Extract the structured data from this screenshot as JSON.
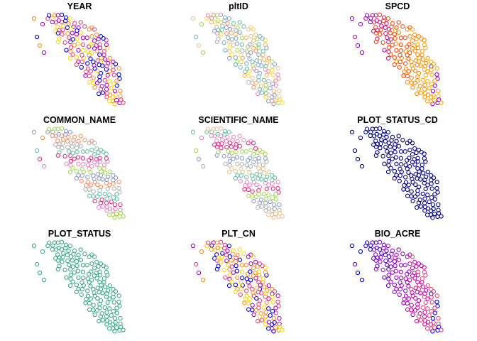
{
  "chart_data": [
    {
      "type": "scatter",
      "title": "YEAR",
      "palette": [
        "#0000ee",
        "#b000c8",
        "#e8417a",
        "#ff8c1a",
        "#ffd600"
      ],
      "grid": false,
      "axes": false
    },
    {
      "type": "scatter",
      "title": "pltID",
      "palette": [
        "#66c2a5",
        "#fc8d62",
        "#8da0cb",
        "#e78ac3",
        "#a6d854",
        "#ffd92f",
        "#e5c494",
        "#b3b3b3",
        "#80b1d3",
        "#fdb462"
      ],
      "grid": false,
      "axes": false
    },
    {
      "type": "scatter",
      "title": "SPCD",
      "palette": [
        "#9400d3",
        "#c71585",
        "#ff4500",
        "#ff8c00",
        "#ffa500"
      ],
      "grid": false,
      "axes": false
    },
    {
      "type": "scatter",
      "title": "COMMON_NAME",
      "palette": [
        "#66c2a5",
        "#e7298a",
        "#e78ac3",
        "#a6d854",
        "#8da0cb",
        "#fc8d62",
        "#b3b3b3"
      ],
      "grid": false,
      "axes": false
    },
    {
      "type": "scatter",
      "title": "SCIENTIFIC_NAME",
      "palette": [
        "#66c2a5",
        "#e78ac3",
        "#e7298a",
        "#a6d854",
        "#8da0cb",
        "#b3b3b3",
        "#e5c494"
      ],
      "grid": false,
      "axes": false
    },
    {
      "type": "scatter",
      "title": "PLOT_STATUS_CD",
      "palette": [
        "#00008b"
      ],
      "grid": false,
      "axes": false
    },
    {
      "type": "scatter",
      "title": "PLOT_STATUS",
      "palette": [
        "#3cab88"
      ],
      "grid": false,
      "axes": false
    },
    {
      "type": "scatter",
      "title": "PLT_CN",
      "palette": [
        "#0000ee",
        "#e8417a",
        "#ff8c1a",
        "#ffd600",
        "#b000c8"
      ],
      "grid": false,
      "axes": false
    },
    {
      "type": "scatter",
      "title": "BIO_ACRE",
      "palette": [
        "#0000ee",
        "#5a00c8",
        "#9b00c8",
        "#c800b4",
        "#e8417a"
      ],
      "grid": false,
      "axes": false
    }
  ]
}
